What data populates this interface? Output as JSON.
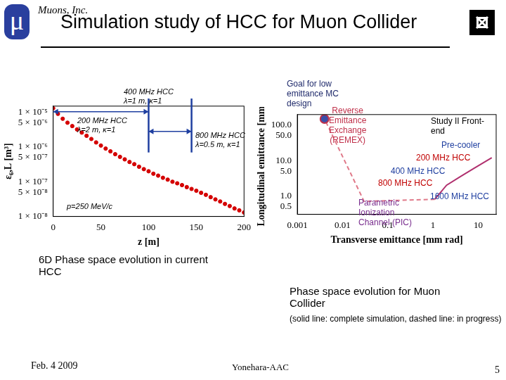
{
  "header": {
    "logo": "μ",
    "company": "Muons, Inc.",
    "title": "Simulation study of HCC for Muon Collider"
  },
  "chart_data": [
    {
      "type": "scatter",
      "x": [
        0,
        5,
        10,
        15,
        20,
        25,
        30,
        35,
        40,
        45,
        50,
        55,
        60,
        65,
        70,
        75,
        80,
        85,
        90,
        95,
        100,
        105,
        110,
        115,
        120,
        125,
        130,
        135,
        140,
        145,
        150,
        155,
        160,
        165,
        170,
        175,
        180,
        185,
        190,
        195,
        200
      ],
      "values": [
        1.3e-05,
        9e-06,
        6.5e-06,
        5e-06,
        4e-06,
        3.2e-06,
        2.6e-06,
        2.1e-06,
        1.7e-06,
        1.35e-06,
        1.1e-06,
        9e-07,
        7.5e-07,
        6.2e-07,
        5.2e-07,
        4.4e-07,
        3.7e-07,
        3.2e-07,
        2.7e-07,
        2.3e-07,
        2e-07,
        1.7e-07,
        1.5e-07,
        1.3e-07,
        1.15e-07,
        1e-07,
        9e-08,
        8e-08,
        7e-08,
        6.2e-08,
        5.5e-08,
        4.8e-08,
        4.2e-08,
        3.6e-08,
        3.1e-08,
        2.7e-08,
        2.3e-08,
        2e-08,
        1.7e-08,
        1.5e-08,
        1.3e-08
      ],
      "color": "#d40000",
      "marker": "circle",
      "log": "y",
      "grid": false,
      "xlim": [
        0,
        200
      ],
      "xticks": [
        0,
        50,
        100,
        150,
        200
      ],
      "ylim": [
        1e-08,
        1.5e-05
      ],
      "yticks": [
        {
          "value": 1e-08,
          "label": "1 × 10⁻⁸"
        },
        {
          "value": 5e-08,
          "label": "5 × 10⁻⁸"
        },
        {
          "value": 1e-07,
          "label": "1 × 10⁻⁷"
        },
        {
          "value": 5e-07,
          "label": "5 × 10⁻⁷"
        },
        {
          "value": 1e-06,
          "label": "1 × 10⁻⁶"
        },
        {
          "value": 5e-06,
          "label": "5 × 10⁻⁶"
        },
        {
          "value": 1e-05,
          "label": "1 × 10⁻⁵"
        }
      ],
      "x_label": "z [m]",
      "y_label": "ε₆,L [m³]",
      "stage_boundaries": [
        100,
        145
      ],
      "annotations": [
        {
          "text": "400 MHz HCC\nλ=1 m, κ=1"
        },
        {
          "text": "200 MHz HCC\nλ=2 m, κ=1"
        },
        {
          "text": "800 MHz HCC\nλ=0.5 m, κ=1"
        },
        {
          "text": "p=250 MeV/c"
        }
      ]
    },
    {
      "type": "line",
      "log": true,
      "grid": false,
      "series": [
        {
          "x": [
            20,
            8,
            4,
            2,
            1.1
          ],
          "values": [
            12,
            6,
            3.5,
            2,
            0.8
          ],
          "color": "#b0306e",
          "line_style": "solid"
        },
        {
          "x": [
            1.1,
            0.03,
            0.004
          ],
          "values": [
            0.8,
            0.7,
            150
          ],
          "color": "#e07a8a",
          "line_style": "dashed"
        },
        {
          "type": "scatter",
          "x": [
            0.004
          ],
          "values": [
            150
          ],
          "color": "#3b4fa8",
          "marker": "circle"
        }
      ],
      "xlim": [
        0.001,
        25
      ],
      "xticks": [
        0.001,
        0.01,
        0.1,
        1,
        10
      ],
      "ylim": [
        0.3,
        200
      ],
      "yticks": [
        0.5,
        {
          "value": 1,
          "label": "1.0"
        },
        {
          "value": 5,
          "label": "5.0"
        },
        {
          "value": 10,
          "label": "10.0"
        },
        {
          "value": 50,
          "label": "50.0"
        },
        {
          "value": 100,
          "label": "100.0"
        }
      ],
      "x_label": "Transverse emittance [mm rad]",
      "y_label": "Longitudinal emittance [mm]",
      "annotations": [
        {
          "text": "Goal for low\nemittance MC\ndesign",
          "color": "#1f2a6b"
        },
        {
          "text": "Reverse\nEmittance\nExchange\n(REMEX)",
          "color": "#c0304a"
        },
        {
          "text": "Study II Front-\nend",
          "color": "#000000"
        },
        {
          "text": "Pre-cooler",
          "color": "#1f3fa0"
        },
        {
          "text": "200 MHz HCC",
          "color": "#c00000"
        },
        {
          "text": "400 MHz HCC",
          "color": "#1f3fa0"
        },
        {
          "text": "800 MHz HCC",
          "color": "#c00000"
        },
        {
          "text": "1600 MHz HCC",
          "color": "#1f3fa0"
        },
        {
          "text": "Parametric\nIonization\nChannel (PIC)",
          "color": "#7a2f8f"
        }
      ]
    }
  ],
  "captions": {
    "left": "6D Phase space evolution in current\nHCC",
    "right": "Phase space evolution for Muon\nCollider",
    "note": "(solid line: complete simulation, dashed line: in progress)"
  },
  "footer": {
    "date": "Feb. 4 2009",
    "author": "Yonehara-AAC",
    "page": "5"
  }
}
